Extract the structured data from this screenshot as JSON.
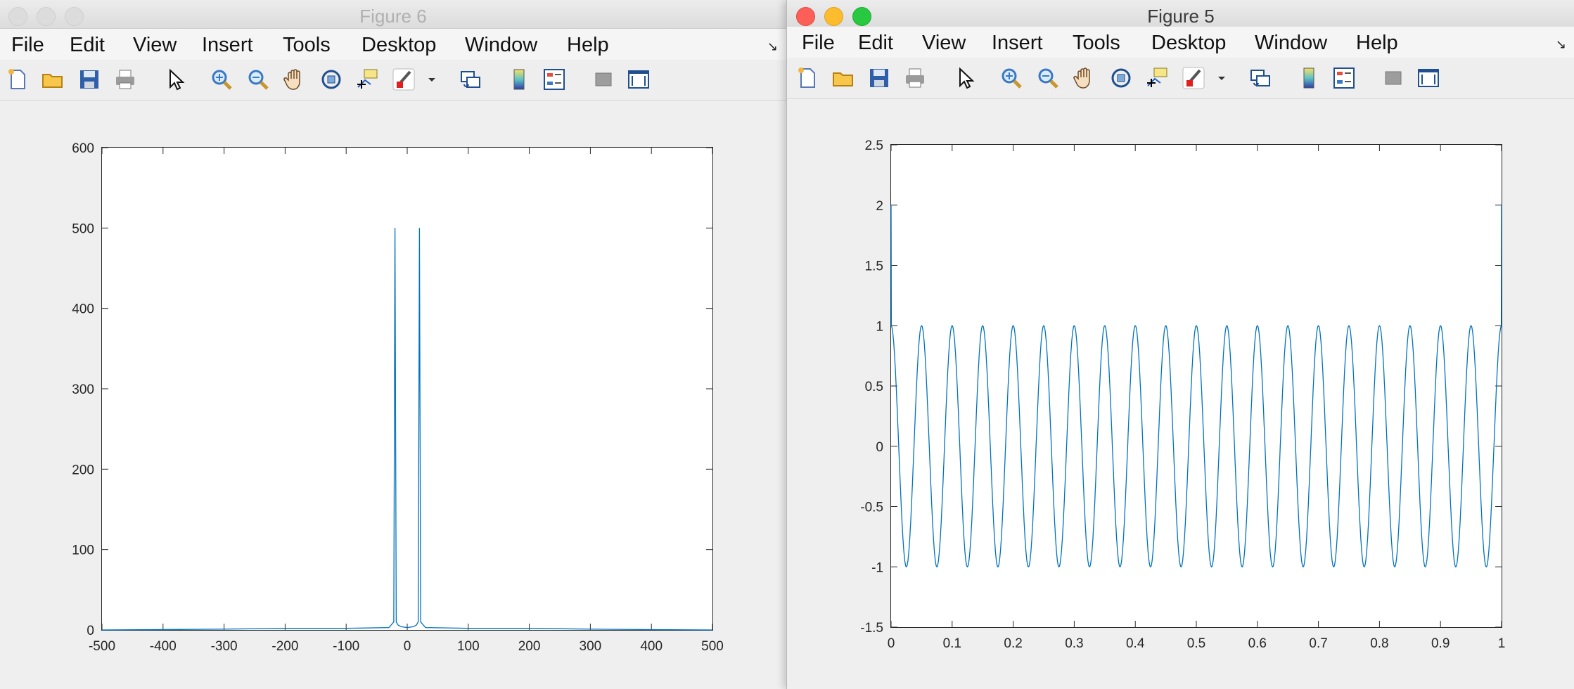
{
  "windows": {
    "figure6": {
      "title": "Figure 6",
      "menu": [
        "File",
        "Edit",
        "View",
        "Insert",
        "Tools",
        "Desktop",
        "Window",
        "Help"
      ],
      "active": false
    },
    "figure5": {
      "title": "Figure 5",
      "menu": [
        "File",
        "Edit",
        "View",
        "Insert",
        "Tools",
        "Desktop",
        "Window",
        "Help"
      ],
      "active": true
    }
  },
  "toolbar_icons": [
    "new-figure-icon",
    "open-file-icon",
    "save-icon",
    "print-icon",
    "pointer-icon",
    "zoom-in-icon",
    "zoom-out-icon",
    "pan-hand-icon",
    "rotate-3d-icon",
    "data-cursor-icon",
    "brush-icon",
    "dropdown-arrow-icon",
    "link-plot-icon",
    "colorbar-icon",
    "legend-icon",
    "hide-plot-tools-icon",
    "show-plot-tools-icon"
  ],
  "colors": {
    "line": "#0072BD",
    "axis": "#262626"
  },
  "chart_data": [
    {
      "type": "line",
      "window": "Figure 6",
      "xlim": [
        -500,
        500
      ],
      "ylim": [
        0,
        600
      ],
      "xticks": [
        "-500",
        "-400",
        "-300",
        "-200",
        "-100",
        "0",
        "100",
        "200",
        "300",
        "400",
        "500"
      ],
      "yticks": [
        "0",
        "100",
        "200",
        "300",
        "400",
        "500",
        "600"
      ],
      "series": [
        {
          "x": [
            -500,
            -300,
            -200,
            -100,
            -30,
            -22,
            -20,
            -18,
            -15,
            -10,
            0,
            10,
            15,
            18,
            20,
            22,
            30,
            100,
            200,
            300,
            500
          ],
          "y": [
            0,
            1,
            2,
            2,
            3,
            10,
            500,
            10,
            6,
            4,
            3,
            4,
            6,
            10,
            500,
            10,
            3,
            2,
            2,
            1,
            0
          ]
        }
      ]
    },
    {
      "type": "line",
      "window": "Figure 5",
      "xlim": [
        0,
        1
      ],
      "ylim": [
        -1.5,
        2.5
      ],
      "xticks": [
        "0",
        "0.1",
        "0.2",
        "0.3",
        "0.4",
        "0.5",
        "0.6",
        "0.7",
        "0.8",
        "0.9",
        "1"
      ],
      "yticks": [
        "-1.5",
        "-1",
        "-0.5",
        "0",
        "0.5",
        "1",
        "1.5",
        "2",
        "2.5"
      ],
      "series": [
        {
          "function": "cos(2*pi*20*t)",
          "frequency_hz": 20,
          "amplitude": 1,
          "x_range": [
            0,
            1
          ],
          "end_peak": 2
        }
      ]
    }
  ]
}
